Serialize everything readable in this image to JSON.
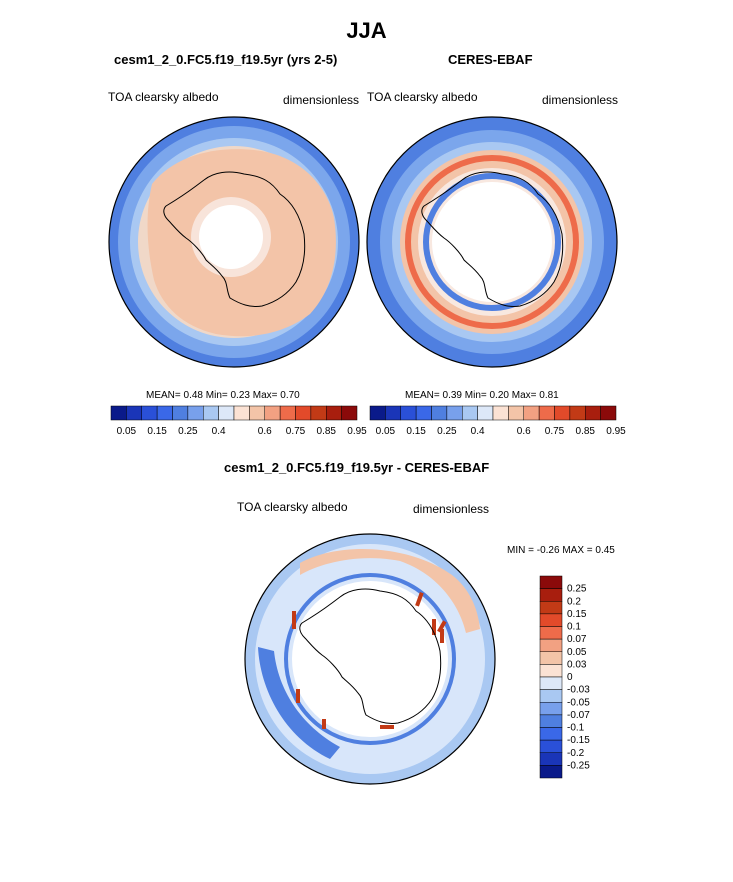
{
  "title": "JJA",
  "palette": {
    "ocean_blue": "#4f7fe0",
    "light_blue": "#a9c8f2",
    "pale_pink": "#f3c4a8",
    "orange": "#ee6b4a",
    "dark_red": "#8b0a0a",
    "dark_blue": "#0a1a8a"
  },
  "chart_data": [
    {
      "type": "heatmap",
      "projection": "south-polar-stereographic",
      "title": "cesm1_2_0.FC5.f19_f19.5yr (yrs 2-5)",
      "variable": "TOA clearsky albedo",
      "units": "dimensionless",
      "stats": {
        "mean_label": "MEAN=",
        "mean": "0.48",
        "min_label": "Min=",
        "min": "0.23",
        "max_label": "Max=",
        "max": "0.70"
      },
      "colorbar": {
        "ticks": [
          "0.05",
          "0.15",
          "0.25",
          "0.4",
          "0.6",
          "0.75",
          "0.85",
          "0.95"
        ],
        "orientation": "horizontal"
      }
    },
    {
      "type": "heatmap",
      "projection": "south-polar-stereographic",
      "title": "CERES-EBAF",
      "variable": "TOA clearsky albedo",
      "units": "dimensionless",
      "stats": {
        "mean_label": "MEAN=",
        "mean": "0.39",
        "min_label": "Min=",
        "min": "0.20",
        "max_label": "Max=",
        "max": "0.81"
      },
      "colorbar": {
        "ticks": [
          "0.05",
          "0.15",
          "0.25",
          "0.4",
          "0.6",
          "0.75",
          "0.85",
          "0.95"
        ],
        "orientation": "horizontal"
      }
    },
    {
      "type": "heatmap",
      "projection": "south-polar-stereographic",
      "title": "cesm1_2_0.FC5.f19_f19.5yr - CERES-EBAF",
      "variable": "TOA clearsky albedo",
      "units": "dimensionless",
      "stats": {
        "min_label": "MIN =",
        "min": "-0.26",
        "max_label": "MAX =",
        "max": "0.45"
      },
      "colorbar": {
        "ticks": [
          "0.25",
          "0.2",
          "0.15",
          "0.1",
          "0.07",
          "0.05",
          "0.03",
          "0",
          "-0.03",
          "-0.05",
          "-0.07",
          "-0.1",
          "-0.15",
          "-0.2",
          "-0.25"
        ],
        "orientation": "vertical"
      }
    }
  ]
}
